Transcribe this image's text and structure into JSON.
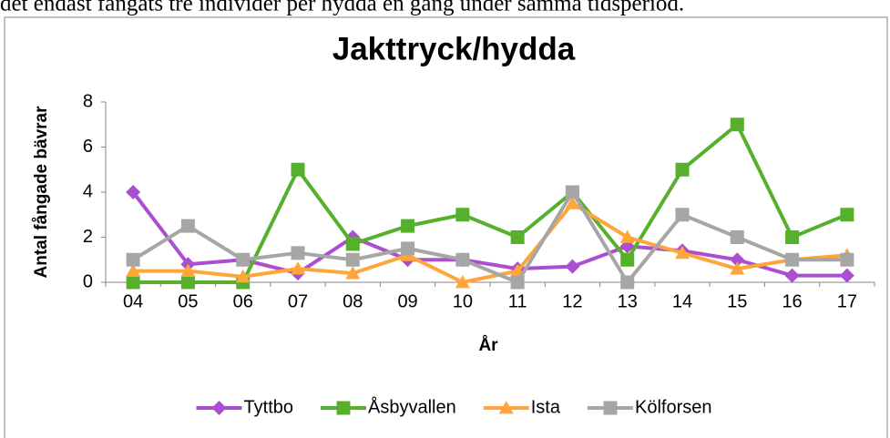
{
  "caption": "det endast fångats tre individer per hydda en gång under samma tidsperiod.",
  "chart_data": {
    "type": "line",
    "title": "Jakttryck/hydda",
    "x_label": "År",
    "y_label": "Antal fångade bävrar",
    "categories": [
      "04",
      "05",
      "06",
      "07",
      "08",
      "09",
      "10",
      "11",
      "12",
      "13",
      "14",
      "15",
      "16",
      "17"
    ],
    "series": [
      {
        "name": "Tyttbo",
        "color": "#a94fd0",
        "marker": "diamond",
        "values": [
          4,
          0.8,
          1,
          0.4,
          2,
          1,
          1,
          0.6,
          0.7,
          1.6,
          1.4,
          1,
          0.3,
          0.3
        ]
      },
      {
        "name": "Åsbyvallen",
        "color": "#57b02b",
        "marker": "square",
        "values": [
          0,
          0,
          0,
          5,
          1.7,
          2.5,
          3,
          2,
          4,
          1,
          5,
          7,
          2,
          3
        ]
      },
      {
        "name": "Ista",
        "color": "#ffa53a",
        "marker": "triangle",
        "values": [
          0.5,
          0.5,
          0.25,
          0.6,
          0.4,
          1.2,
          0,
          0.5,
          3.5,
          2,
          1.3,
          0.6,
          1,
          1.2
        ]
      },
      {
        "name": "Kölforsen",
        "color": "#a6a6a6",
        "marker": "square",
        "values": [
          1,
          2.5,
          1,
          1.3,
          1,
          1.5,
          1,
          0,
          4,
          0,
          3,
          2,
          1,
          1
        ]
      }
    ],
    "ylim": [
      0,
      8
    ],
    "yticks": [
      0,
      2,
      4,
      6,
      8
    ],
    "grid": false,
    "legend": "bottom"
  }
}
